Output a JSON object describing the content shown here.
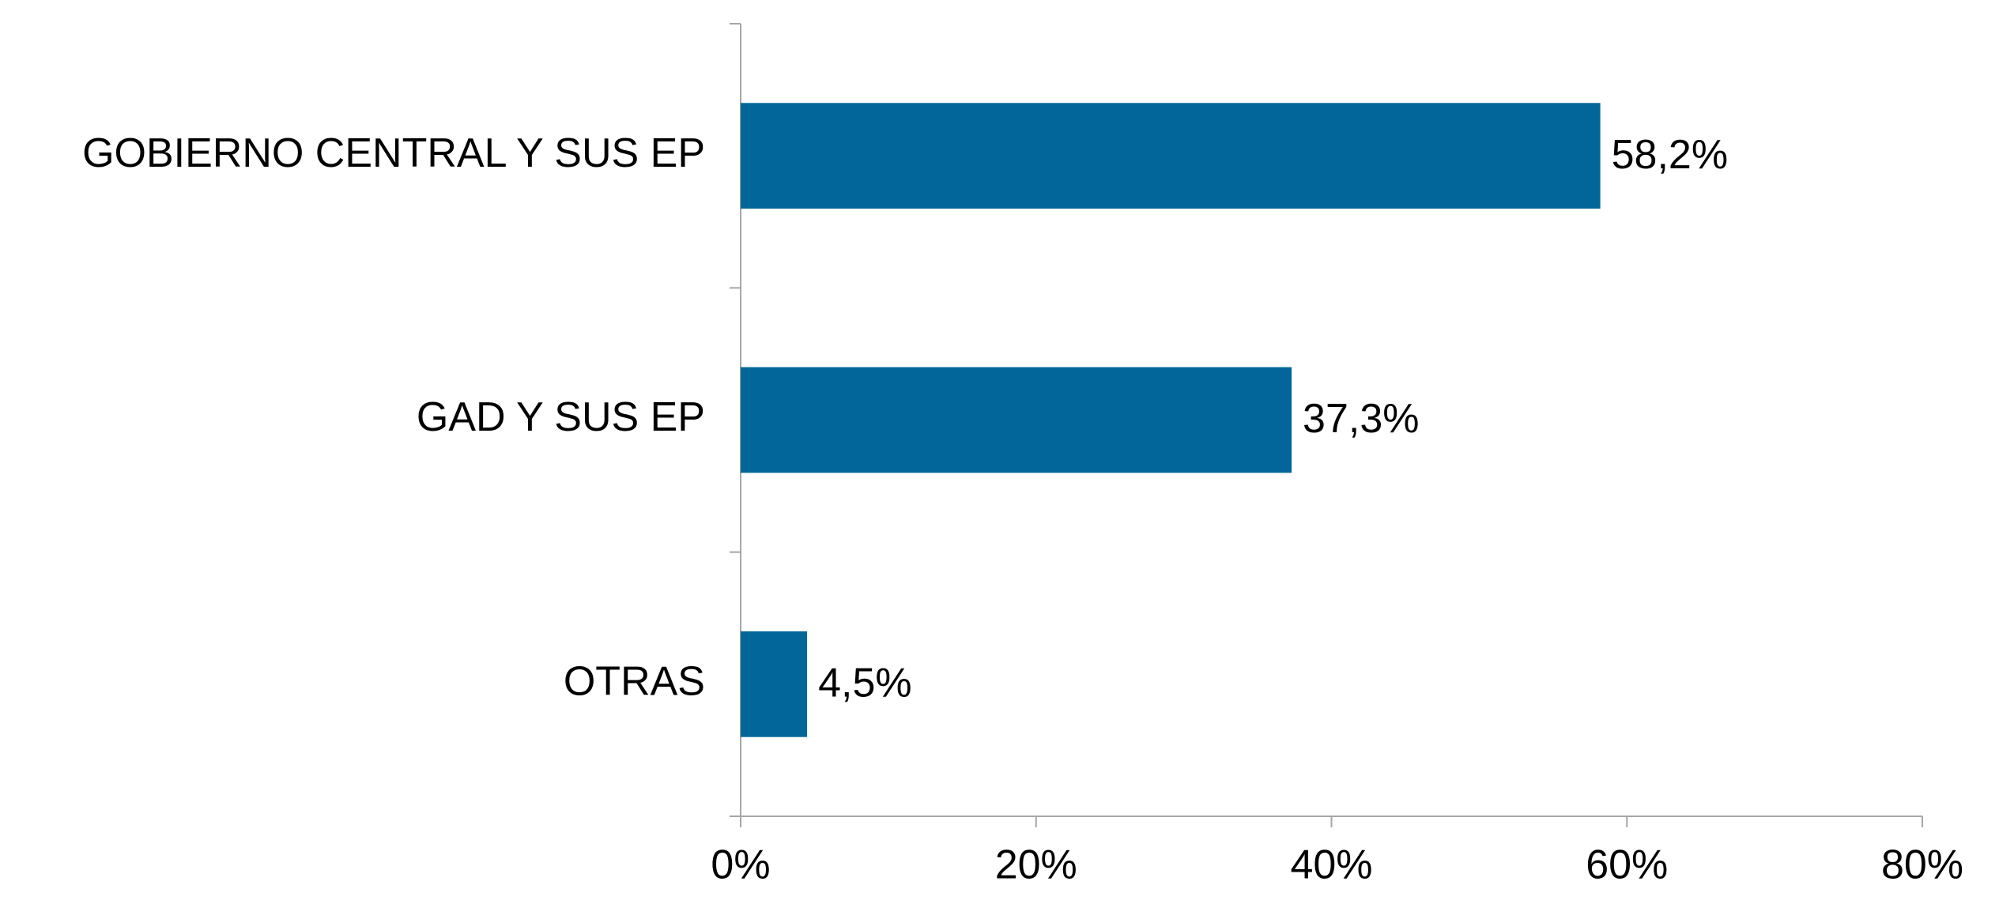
{
  "chart_data": {
    "type": "bar",
    "orientation": "horizontal",
    "categories": [
      "GOBIERNO CENTRAL Y SUS EP",
      "GAD Y SUS EP",
      "OTRAS"
    ],
    "values": [
      58.2,
      37.3,
      4.5
    ],
    "value_labels": [
      "58,2%",
      "37,3%",
      "4,5%"
    ],
    "color": "#03669a",
    "xlim": [
      0,
      80
    ],
    "xticks": [
      {
        "value": 0,
        "label": "0%"
      },
      {
        "value": 20,
        "label": "20%"
      },
      {
        "value": 40,
        "label": "40%"
      },
      {
        "value": 60,
        "label": "60%"
      },
      {
        "value": 80,
        "label": "80%"
      }
    ],
    "grid": false
  }
}
